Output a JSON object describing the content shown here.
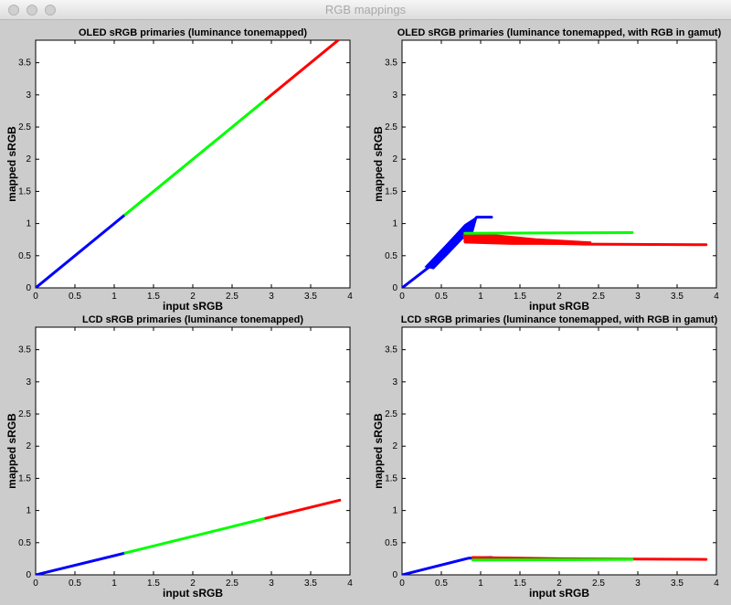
{
  "window": {
    "title": "RGB mappings"
  },
  "colors": {
    "red": "#ff0000",
    "green": "#00ff00",
    "blue": "#0000ff",
    "figure_bg": "#cccccc",
    "axes_bg": "#ffffff"
  },
  "chart_data": [
    {
      "type": "line",
      "title": "OLED sRGB primaries (luminance tonemapped)",
      "xlabel": "input sRGB",
      "ylabel": "mapped sRGB",
      "xlim": [
        0,
        4
      ],
      "ylim": [
        0,
        3.85
      ],
      "xticks": [
        "0",
        "0.5",
        "1",
        "1.5",
        "2",
        "2.5",
        "3",
        "3.5",
        "4"
      ],
      "yticks": [
        "0",
        "0.5",
        "1",
        "1.5",
        "2",
        "2.5",
        "3",
        "3.5"
      ],
      "series": [
        {
          "color": "blue",
          "points": [
            [
              0,
              0
            ],
            [
              1.14,
              1.14
            ]
          ]
        },
        {
          "color": "green",
          "points": [
            [
              1.14,
              1.14
            ],
            [
              2.93,
              2.93
            ]
          ]
        },
        {
          "color": "red",
          "points": [
            [
              2.93,
              2.93
            ],
            [
              3.87,
              3.87
            ]
          ]
        }
      ]
    },
    {
      "type": "line",
      "title": "OLED sRGB primaries (luminance tonemapped, with RGB in gamut)",
      "xlabel": "input sRGB",
      "ylabel": "mapped sRGB",
      "xlim": [
        0,
        4
      ],
      "ylim": [
        0,
        3.85
      ],
      "xticks": [
        "0",
        "0.5",
        "1",
        "1.5",
        "2",
        "2.5",
        "3",
        "3.5",
        "4"
      ],
      "yticks": [
        "0",
        "0.5",
        "1",
        "1.5",
        "2",
        "2.5",
        "3",
        "3.5"
      ],
      "series": [
        {
          "color": "blue",
          "points": [
            [
              0,
              0
            ],
            [
              0.35,
              0.33
            ],
            [
              0.6,
              0.62
            ],
            [
              0.8,
              0.9
            ],
            [
              0.95,
              1.1
            ],
            [
              1.14,
              1.1
            ]
          ]
        },
        {
          "color": "green",
          "points": [
            [
              0.8,
              0.85
            ],
            [
              2.93,
              0.86
            ]
          ]
        },
        {
          "color": "red",
          "points": [
            [
              0.8,
              0.72
            ],
            [
              2.3,
              0.68
            ],
            [
              3.87,
              0.67
            ]
          ]
        }
      ],
      "bands": [
        {
          "color": "blue",
          "upper": [
            [
              0.3,
              0.33
            ],
            [
              0.55,
              0.65
            ],
            [
              0.8,
              0.98
            ],
            [
              0.95,
              1.1
            ]
          ],
          "lower": [
            [
              0.4,
              0.3
            ],
            [
              0.6,
              0.55
            ],
            [
              0.78,
              0.78
            ],
            [
              0.9,
              0.88
            ]
          ]
        },
        {
          "color": "red",
          "upper": [
            [
              0.78,
              0.82
            ],
            [
              1.2,
              0.82
            ],
            [
              1.7,
              0.76
            ],
            [
              2.4,
              0.71
            ]
          ],
          "lower": [
            [
              0.8,
              0.7
            ],
            [
              1.4,
              0.68
            ],
            [
              2.4,
              0.68
            ]
          ]
        }
      ]
    },
    {
      "type": "line",
      "title": "LCD sRGB primaries (luminance tonemapped)",
      "xlabel": "input sRGB",
      "ylabel": "mapped sRGB",
      "xlim": [
        0,
        4
      ],
      "ylim": [
        0,
        3.85
      ],
      "xticks": [
        "0",
        "0.5",
        "1",
        "1.5",
        "2",
        "2.5",
        "3",
        "3.5",
        "4"
      ],
      "yticks": [
        "0",
        "0.5",
        "1",
        "1.5",
        "2",
        "2.5",
        "3",
        "3.5"
      ],
      "series": [
        {
          "color": "blue",
          "points": [
            [
              0,
              0
            ],
            [
              1.14,
              0.34
            ]
          ]
        },
        {
          "color": "green",
          "points": [
            [
              1.14,
              0.34
            ],
            [
              2.93,
              0.88
            ]
          ]
        },
        {
          "color": "red",
          "points": [
            [
              2.93,
              0.88
            ],
            [
              3.87,
              1.16
            ]
          ]
        }
      ]
    },
    {
      "type": "line",
      "title": "LCD sRGB primaries (luminance tonemapped, with RGB in gamut)",
      "xlabel": "input sRGB",
      "ylabel": "mapped sRGB",
      "xlim": [
        0,
        4
      ],
      "ylim": [
        0,
        3.85
      ],
      "xticks": [
        "0",
        "0.5",
        "1",
        "1.5",
        "2",
        "2.5",
        "3",
        "3.5",
        "4"
      ],
      "yticks": [
        "0",
        "0.5",
        "1",
        "1.5",
        "2",
        "2.5",
        "3",
        "3.5"
      ],
      "series": [
        {
          "color": "blue",
          "points": [
            [
              0,
              0
            ],
            [
              0.85,
              0.26
            ],
            [
              1.14,
              0.27
            ]
          ]
        },
        {
          "color": "red",
          "points": [
            [
              0.9,
              0.27
            ],
            [
              2.0,
              0.25
            ],
            [
              3.87,
              0.24
            ]
          ]
        },
        {
          "color": "green",
          "points": [
            [
              0.9,
              0.23
            ],
            [
              2.93,
              0.24
            ]
          ]
        }
      ],
      "bands": []
    }
  ]
}
